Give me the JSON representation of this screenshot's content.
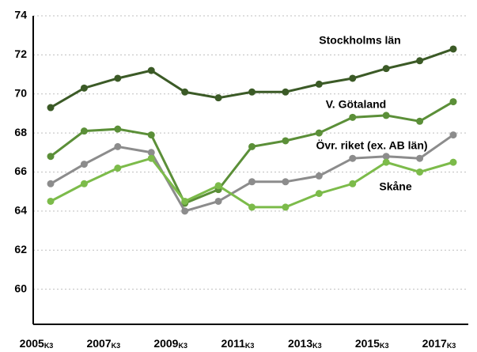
{
  "chart_data": {
    "type": "line",
    "categories": [
      "2005",
      null,
      "2007",
      null,
      "2009",
      null,
      "2011",
      null,
      "2013",
      null,
      "2015",
      null,
      "2017"
    ],
    "category_subscript": "K3",
    "ylim": [
      58.2,
      74
    ],
    "yticks": [
      60,
      62,
      64,
      66,
      68,
      70,
      72,
      74
    ],
    "grid": true,
    "series": [
      {
        "name": "Stockholms län",
        "color": "#3b5a26",
        "values": [
          69.3,
          70.3,
          70.8,
          71.2,
          70.1,
          69.8,
          70.1,
          70.1,
          70.5,
          70.8,
          71.3,
          71.7,
          72.3
        ]
      },
      {
        "name": "V. Götaland",
        "color": "#5b8f38",
        "values": [
          66.8,
          68.1,
          68.2,
          67.9,
          64.4,
          65.1,
          67.3,
          67.6,
          68.0,
          68.8,
          68.9,
          68.6,
          69.6
        ]
      },
      {
        "name": "Övr. riket (ex. AB län)",
        "color": "#8c8c8c",
        "values": [
          65.4,
          66.4,
          67.3,
          67.0,
          64.0,
          64.5,
          65.5,
          65.5,
          65.8,
          66.7,
          66.8,
          66.7,
          67.9
        ]
      },
      {
        "name": "Skåne",
        "color": "#7cbb4a",
        "values": [
          64.5,
          65.4,
          66.2,
          66.7,
          64.5,
          65.3,
          64.2,
          64.2,
          64.9,
          65.4,
          66.5,
          66.0,
          66.5
        ]
      }
    ]
  }
}
